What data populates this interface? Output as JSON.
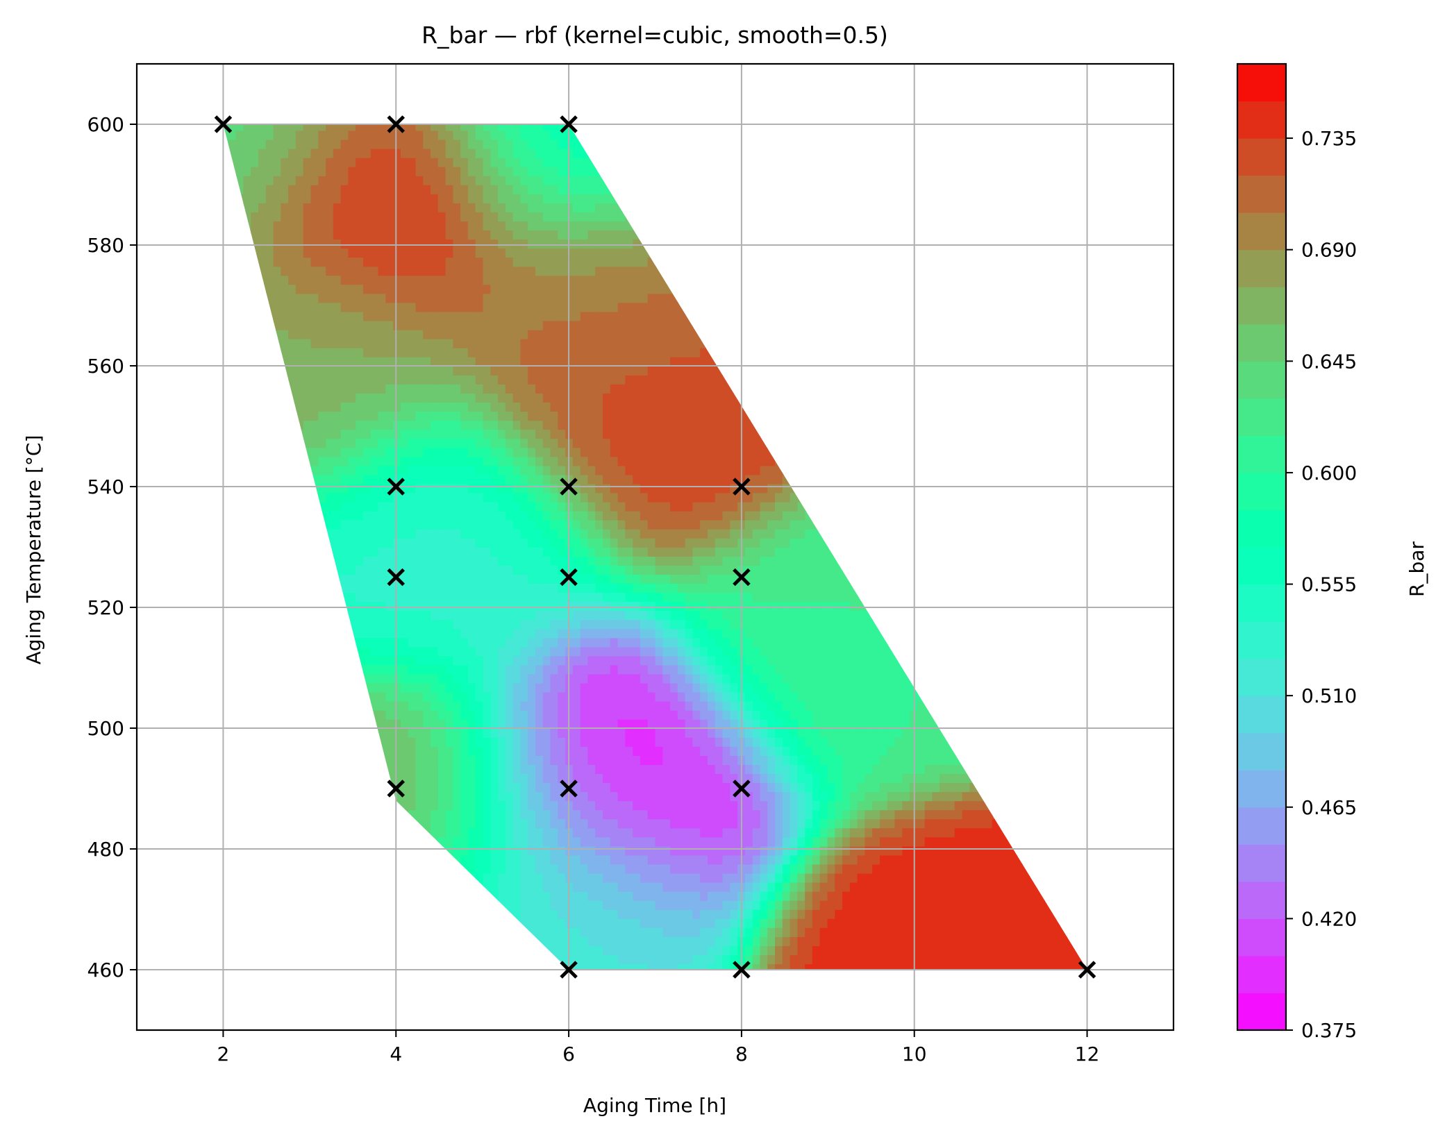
{
  "chart_data": {
    "type": "heatmap",
    "title": "R_bar — rbf (kernel=cubic, smooth=0.5)",
    "xlabel": "Aging Time [h]",
    "ylabel": "Aging Temperature [°C]",
    "xlim": [
      1,
      13
    ],
    "ylim": [
      450,
      610
    ],
    "xticks": [
      2,
      4,
      6,
      8,
      10,
      12
    ],
    "yticks": [
      460,
      480,
      500,
      520,
      540,
      560,
      580,
      600
    ],
    "grid": true,
    "interpolation": "rbf",
    "kernel": "cubic",
    "smooth": 0.5,
    "colormap": "rainbow",
    "colorbar": {
      "label": "R_bar",
      "min": 0.375,
      "max": 0.765,
      "levels": 26,
      "ticks": [
        0.375,
        0.42,
        0.465,
        0.51,
        0.555,
        0.6,
        0.645,
        0.69,
        0.735
      ],
      "tick_labels": [
        "0.375",
        "0.420",
        "0.465",
        "0.510",
        "0.555",
        "0.600",
        "0.645",
        "0.690",
        "0.735"
      ]
    },
    "region": {
      "description_points": [
        [
          2,
          600
        ],
        [
          6,
          600
        ],
        [
          12,
          460
        ],
        [
          6,
          460
        ],
        [
          4,
          490
        ]
      ]
    },
    "samples": [
      {
        "x": 2,
        "y": 600
      },
      {
        "x": 4,
        "y": 600
      },
      {
        "x": 6,
        "y": 600
      },
      {
        "x": 4,
        "y": 540
      },
      {
        "x": 6,
        "y": 540
      },
      {
        "x": 8,
        "y": 540
      },
      {
        "x": 4,
        "y": 525
      },
      {
        "x": 6,
        "y": 525
      },
      {
        "x": 8,
        "y": 525
      },
      {
        "x": 4,
        "y": 490
      },
      {
        "x": 6,
        "y": 490
      },
      {
        "x": 8,
        "y": 490
      },
      {
        "x": 6,
        "y": 460
      },
      {
        "x": 8,
        "y": 460
      },
      {
        "x": 12,
        "y": 460
      }
    ],
    "field_features": [
      {
        "x": 3.9,
        "y": 589,
        "value": 0.755
      },
      {
        "x": 7.0,
        "y": 553,
        "value": 0.735
      },
      {
        "x": 6.5,
        "y": 491,
        "value": 0.39
      },
      {
        "x": 10.4,
        "y": 459,
        "value": 0.745
      },
      {
        "x": 4.1,
        "y": 487,
        "value": 0.67
      },
      {
        "x": 9.2,
        "y": 515,
        "value": 0.615
      },
      {
        "x": 3.0,
        "y": 560,
        "value": 0.67
      },
      {
        "x": 4.5,
        "y": 530,
        "value": 0.535
      },
      {
        "x": 6.0,
        "y": 600,
        "value": 0.56
      },
      {
        "x": 2.1,
        "y": 600,
        "value": 0.63
      },
      {
        "x": 6.5,
        "y": 570,
        "value": 0.7
      },
      {
        "x": 5.8,
        "y": 470,
        "value": 0.52
      }
    ]
  }
}
